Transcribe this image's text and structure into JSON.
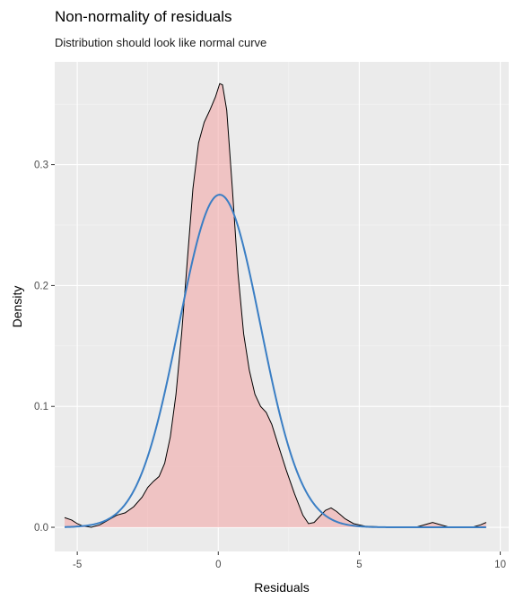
{
  "chart_data": {
    "type": "area",
    "title": "Non-normality of residuals",
    "subtitle": "Distribution should look like normal curve",
    "xlabel": "Residuals",
    "ylabel": "Density",
    "xlim": [
      -5.8,
      10.3
    ],
    "ylim": [
      -0.02,
      0.385
    ],
    "xticks": [
      -5,
      0,
      5,
      10
    ],
    "xtick_labels": [
      "-5",
      "0",
      "5",
      "10"
    ],
    "yticks": [
      0.0,
      0.1,
      0.2,
      0.3
    ],
    "ytick_labels": [
      "0.0",
      "0.1",
      "0.2",
      "0.3"
    ],
    "grid": true,
    "series": [
      {
        "kind": "density",
        "style": "filled area, black outline",
        "points": [
          [
            -5.45,
            0.008
          ],
          [
            -5.2,
            0.006
          ],
          [
            -5.0,
            0.003
          ],
          [
            -4.8,
            0.001
          ],
          [
            -4.5,
            0.0
          ],
          [
            -4.2,
            0.002
          ],
          [
            -3.9,
            0.006
          ],
          [
            -3.6,
            0.01
          ],
          [
            -3.3,
            0.012
          ],
          [
            -3.0,
            0.017
          ],
          [
            -2.7,
            0.025
          ],
          [
            -2.5,
            0.033
          ],
          [
            -2.3,
            0.038
          ],
          [
            -2.1,
            0.042
          ],
          [
            -1.9,
            0.053
          ],
          [
            -1.7,
            0.075
          ],
          [
            -1.5,
            0.11
          ],
          [
            -1.3,
            0.16
          ],
          [
            -1.1,
            0.22
          ],
          [
            -0.9,
            0.28
          ],
          [
            -0.7,
            0.318
          ],
          [
            -0.5,
            0.335
          ],
          [
            -0.3,
            0.345
          ],
          [
            -0.1,
            0.356
          ],
          [
            0.05,
            0.367
          ],
          [
            0.15,
            0.366
          ],
          [
            0.3,
            0.345
          ],
          [
            0.5,
            0.28
          ],
          [
            0.7,
            0.21
          ],
          [
            0.9,
            0.16
          ],
          [
            1.1,
            0.13
          ],
          [
            1.3,
            0.11
          ],
          [
            1.5,
            0.1
          ],
          [
            1.7,
            0.095
          ],
          [
            1.9,
            0.085
          ],
          [
            2.1,
            0.07
          ],
          [
            2.4,
            0.048
          ],
          [
            2.7,
            0.028
          ],
          [
            3.0,
            0.01
          ],
          [
            3.2,
            0.003
          ],
          [
            3.4,
            0.004
          ],
          [
            3.6,
            0.009
          ],
          [
            3.8,
            0.014
          ],
          [
            4.0,
            0.016
          ],
          [
            4.2,
            0.013
          ],
          [
            4.5,
            0.007
          ],
          [
            4.8,
            0.003
          ],
          [
            5.2,
            0.001
          ],
          [
            6.0,
            0.0
          ],
          [
            7.0,
            0.0
          ],
          [
            7.3,
            0.002
          ],
          [
            7.6,
            0.004
          ],
          [
            7.9,
            0.002
          ],
          [
            8.2,
            0.0
          ],
          [
            9.0,
            0.0
          ],
          [
            9.3,
            0.002
          ],
          [
            9.5,
            0.004
          ]
        ]
      },
      {
        "kind": "normal curve",
        "style": "blue line",
        "mean": 0.05,
        "sd": 1.45,
        "x_range": [
          -5.45,
          9.5
        ]
      }
    ]
  },
  "colors": {
    "panel_background": "#ebebeb",
    "grid_major": "#ffffff",
    "grid_minor": "#f5f5f5",
    "fill": "#f2a3a3",
    "fill_opacity": 0.55,
    "outline": "#000000",
    "normal_line": "#3a7ec4",
    "tick_text": "#4d4d4d",
    "axis_title": "#000000"
  }
}
